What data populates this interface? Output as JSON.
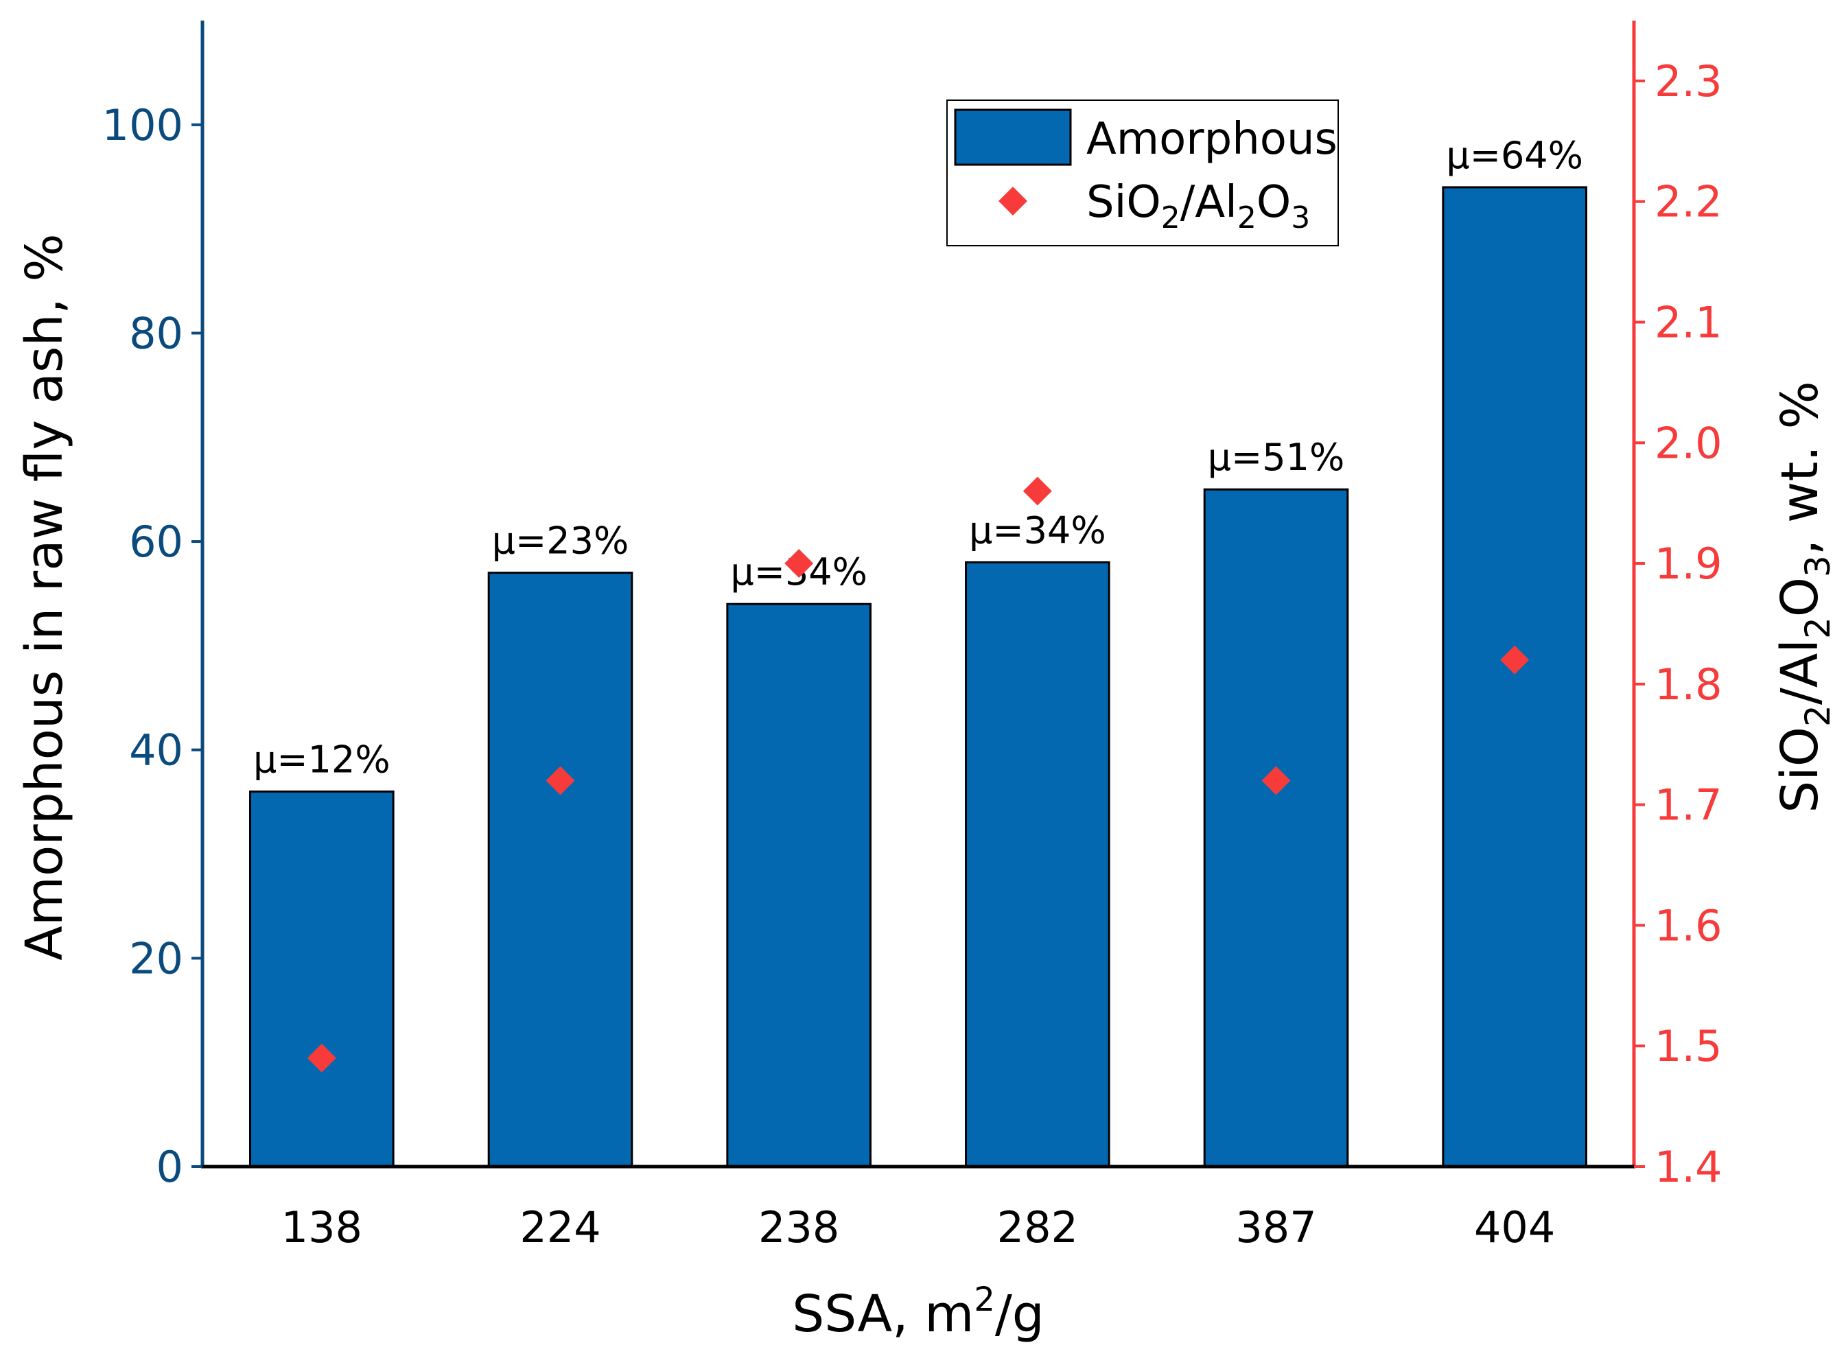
{
  "chart_data": {
    "type": "bar",
    "categories": [
      "138",
      "224",
      "238",
      "282",
      "387",
      "404"
    ],
    "series": [
      {
        "name": "Amorphous",
        "axis": "left",
        "kind": "bar",
        "values": [
          36,
          57,
          54,
          58,
          65,
          94
        ]
      },
      {
        "name": "SiO2/Al2O3",
        "axis": "right",
        "kind": "scatter",
        "marker": "diamond",
        "values": [
          1.49,
          1.72,
          1.9,
          1.96,
          1.72,
          1.82
        ]
      }
    ],
    "bar_labels": [
      "μ=12%",
      "μ=23%",
      "μ=34%",
      "μ=34%",
      "μ=51%",
      "μ=64%"
    ],
    "xlabel": "SSA, m",
    "xlabel_sup": "2",
    "xlabel_tail": "/g",
    "ylabel_left": "Amorphous in raw fly ash, %",
    "ylabel_right": {
      "p1": "SiO",
      "s1": "2",
      "p2": "/Al",
      "s2": "2",
      "p3": "O",
      "s3": "3",
      "p4": ", wt. %"
    },
    "ylim_left": [
      0,
      110
    ],
    "yticks_left": [
      "0",
      "20",
      "40",
      "60",
      "80",
      "100"
    ],
    "ylim_right": [
      1.4,
      2.35
    ],
    "yticks_right": [
      "1.4",
      "1.5",
      "1.6",
      "1.7",
      "1.8",
      "1.9",
      "2.0",
      "2.1",
      "2.2",
      "2.3"
    ],
    "legend": {
      "position": "top-right",
      "entry1": "Amorphous",
      "entry2": {
        "p1": "SiO",
        "s1": "2",
        "p2": "/Al",
        "s2": "2",
        "p3": "O",
        "s3": "3"
      }
    },
    "colors": {
      "bar": "#0468b0",
      "marker": "#f73b3b",
      "left_axis": "#0a4a7c",
      "right_axis": "#f73b3b"
    }
  }
}
